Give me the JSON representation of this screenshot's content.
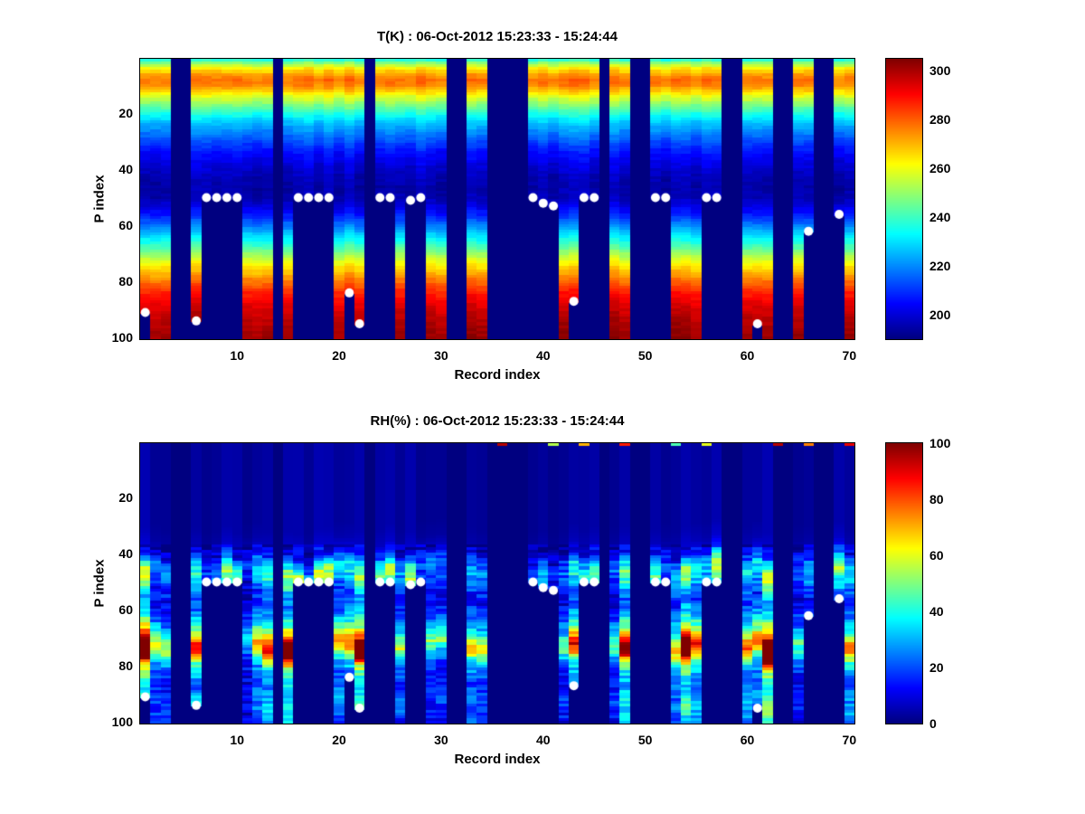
{
  "figure": {
    "background": "#ffffff",
    "text_color": "#000000",
    "marker_color": "#ffffff"
  },
  "chart_data": [
    {
      "type": "heatmap",
      "title": "T(K) : 06-Oct-2012 15:23:33 - 15:24:44",
      "xlabel": "Record index",
      "ylabel": "P index",
      "colormap": "jet",
      "n_records": 70,
      "n_levels": 100,
      "x_axis_range": [
        0.5,
        70.5
      ],
      "y_axis_range": [
        0.5,
        100.5
      ],
      "y_axis_direction": "reversed",
      "x_ticks": [
        10,
        20,
        30,
        40,
        50,
        60,
        70
      ],
      "x_tick_labels": [
        "10",
        "20",
        "30",
        "40",
        "50",
        "60",
        "70"
      ],
      "y_ticks": [
        20,
        40,
        60,
        80,
        100
      ],
      "y_tick_labels": [
        "20",
        "40",
        "60",
        "80",
        "100"
      ],
      "value_range": [
        190,
        305
      ],
      "colorbar_ticks": [
        200,
        220,
        240,
        260,
        280,
        300
      ],
      "colorbar_tick_labels": [
        "200",
        "220",
        "240",
        "260",
        "280",
        "300"
      ],
      "jitter": "additive",
      "base_profile": [
        [
          1,
          238
        ],
        [
          2,
          248
        ],
        [
          4,
          263
        ],
        [
          6,
          273
        ],
        [
          8,
          278
        ],
        [
          10,
          276
        ],
        [
          12,
          268
        ],
        [
          14,
          259
        ],
        [
          16,
          251
        ],
        [
          18,
          244
        ],
        [
          20,
          237
        ],
        [
          23,
          228
        ],
        [
          26,
          221
        ],
        [
          30,
          213
        ],
        [
          34,
          206
        ],
        [
          38,
          201
        ],
        [
          42,
          197
        ],
        [
          46,
          195
        ],
        [
          50,
          196
        ],
        [
          53,
          201
        ],
        [
          56,
          208
        ],
        [
          60,
          219
        ],
        [
          64,
          231
        ],
        [
          68,
          244
        ],
        [
          72,
          257
        ],
        [
          76,
          269
        ],
        [
          80,
          279
        ],
        [
          84,
          288
        ],
        [
          88,
          294
        ],
        [
          92,
          298
        ],
        [
          96,
          301
        ],
        [
          100,
          303
        ]
      ],
      "missing_records": [
        4,
        5,
        14,
        23,
        31,
        32,
        35,
        36,
        37,
        38,
        46,
        49,
        50,
        58,
        59,
        63,
        64,
        67,
        68
      ],
      "markers": [
        {
          "r": 1,
          "p": 91
        },
        {
          "r": 6,
          "p": 94
        },
        {
          "r": 7,
          "p": 50
        },
        {
          "r": 8,
          "p": 50
        },
        {
          "r": 9,
          "p": 50
        },
        {
          "r": 10,
          "p": 50
        },
        {
          "r": 16,
          "p": 50
        },
        {
          "r": 17,
          "p": 50
        },
        {
          "r": 18,
          "p": 50
        },
        {
          "r": 19,
          "p": 50
        },
        {
          "r": 21,
          "p": 84
        },
        {
          "r": 22,
          "p": 95
        },
        {
          "r": 24,
          "p": 50
        },
        {
          "r": 25,
          "p": 50
        },
        {
          "r": 27,
          "p": 51
        },
        {
          "r": 28,
          "p": 50
        },
        {
          "r": 39,
          "p": 50
        },
        {
          "r": 40,
          "p": 52
        },
        {
          "r": 41,
          "p": 53
        },
        {
          "r": 43,
          "p": 87
        },
        {
          "r": 44,
          "p": 50
        },
        {
          "r": 45,
          "p": 50
        },
        {
          "r": 51,
          "p": 50
        },
        {
          "r": 52,
          "p": 50
        },
        {
          "r": 56,
          "p": 50
        },
        {
          "r": 57,
          "p": 50
        },
        {
          "r": 61,
          "p": 95
        },
        {
          "r": 66,
          "p": 62
        },
        {
          "r": 69,
          "p": 56
        }
      ]
    },
    {
      "type": "heatmap",
      "title": "RH(%) : 06-Oct-2012 15:23:33 - 15:24:44",
      "xlabel": "Record index",
      "ylabel": "P index",
      "colormap": "jet",
      "n_records": 70,
      "n_levels": 100,
      "x_axis_range": [
        0.5,
        70.5
      ],
      "y_axis_range": [
        0.5,
        100.5
      ],
      "y_axis_direction": "reversed",
      "x_ticks": [
        10,
        20,
        30,
        40,
        50,
        60,
        70
      ],
      "x_tick_labels": [
        "10",
        "20",
        "30",
        "40",
        "50",
        "60",
        "70"
      ],
      "y_ticks": [
        20,
        40,
        60,
        80,
        100
      ],
      "y_tick_labels": [
        "20",
        "40",
        "60",
        "80",
        "100"
      ],
      "value_range": [
        0,
        100
      ],
      "colorbar_ticks": [
        0,
        20,
        40,
        60,
        80,
        100
      ],
      "colorbar_tick_labels": [
        "0",
        "20",
        "40",
        "60",
        "80",
        "100"
      ],
      "jitter": "multiplicative",
      "base_profile": [
        [
          1,
          3
        ],
        [
          30,
          3
        ],
        [
          36,
          5
        ],
        [
          39,
          10
        ],
        [
          41,
          18
        ],
        [
          43,
          28
        ],
        [
          45,
          36
        ],
        [
          47,
          38
        ],
        [
          49,
          33
        ],
        [
          51,
          28
        ],
        [
          53,
          22
        ],
        [
          56,
          17
        ],
        [
          59,
          20
        ],
        [
          62,
          28
        ],
        [
          65,
          38
        ],
        [
          67,
          48
        ],
        [
          69,
          60
        ],
        [
          71,
          75
        ],
        [
          73,
          85
        ],
        [
          75,
          75
        ],
        [
          77,
          55
        ],
        [
          79,
          40
        ],
        [
          81,
          32
        ],
        [
          84,
          26
        ],
        [
          87,
          22
        ],
        [
          90,
          26
        ],
        [
          93,
          30
        ],
        [
          96,
          28
        ],
        [
          100,
          22
        ]
      ],
      "top_strip_records": [
        {
          "r": 36,
          "v": 95
        },
        {
          "r": 41,
          "v": 55
        },
        {
          "r": 44,
          "v": 70
        },
        {
          "r": 48,
          "v": 85
        },
        {
          "r": 53,
          "v": 45
        },
        {
          "r": 56,
          "v": 60
        },
        {
          "r": 63,
          "v": 95
        },
        {
          "r": 66,
          "v": 75
        },
        {
          "r": 70,
          "v": 90
        }
      ],
      "missing_records": [
        4,
        5,
        14,
        23,
        31,
        32,
        35,
        36,
        37,
        38,
        46,
        49,
        50,
        58,
        59,
        63,
        64,
        67,
        68
      ],
      "markers": [
        {
          "r": 1,
          "p": 91
        },
        {
          "r": 6,
          "p": 94
        },
        {
          "r": 7,
          "p": 50
        },
        {
          "r": 8,
          "p": 50
        },
        {
          "r": 9,
          "p": 50
        },
        {
          "r": 10,
          "p": 50
        },
        {
          "r": 16,
          "p": 50
        },
        {
          "r": 17,
          "p": 50
        },
        {
          "r": 18,
          "p": 50
        },
        {
          "r": 19,
          "p": 50
        },
        {
          "r": 21,
          "p": 84
        },
        {
          "r": 22,
          "p": 95
        },
        {
          "r": 24,
          "p": 50
        },
        {
          "r": 25,
          "p": 50
        },
        {
          "r": 27,
          "p": 51
        },
        {
          "r": 28,
          "p": 50
        },
        {
          "r": 39,
          "p": 50
        },
        {
          "r": 40,
          "p": 52
        },
        {
          "r": 41,
          "p": 53
        },
        {
          "r": 43,
          "p": 87
        },
        {
          "r": 44,
          "p": 50
        },
        {
          "r": 45,
          "p": 50
        },
        {
          "r": 51,
          "p": 50
        },
        {
          "r": 52,
          "p": 50
        },
        {
          "r": 56,
          "p": 50
        },
        {
          "r": 57,
          "p": 50
        },
        {
          "r": 61,
          "p": 95
        },
        {
          "r": 66,
          "p": 62
        },
        {
          "r": 69,
          "p": 56
        }
      ]
    }
  ]
}
